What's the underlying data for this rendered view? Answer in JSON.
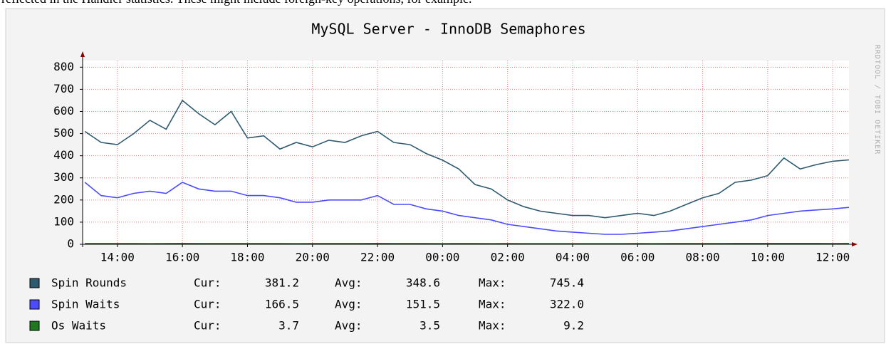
{
  "caption": "reflected in the Handler statistics. These might include foreign-key operations, for example.",
  "chart_data": {
    "type": "line",
    "title": "MySQL Server - InnoDB Semaphores",
    "watermark": "RRDTOOL / TOBI OETIKER",
    "x": [
      13,
      13.5,
      14,
      14.5,
      15,
      15.5,
      16,
      16.5,
      17,
      17.5,
      18,
      18.5,
      19,
      19.5,
      20,
      20.5,
      21,
      21.5,
      22,
      22.5,
      23,
      23.5,
      24,
      24.5,
      25,
      25.5,
      26,
      26.5,
      27,
      27.5,
      28,
      28.5,
      29,
      29.5,
      30,
      30.5,
      31,
      31.5,
      32,
      32.5,
      33,
      33.5,
      34,
      34.5,
      35,
      35.5,
      36,
      36.5
    ],
    "xlim": [
      12.93,
      36.5
    ],
    "xticks": [
      {
        "value": 14,
        "label": "14:00"
      },
      {
        "value": 16,
        "label": "16:00"
      },
      {
        "value": 18,
        "label": "18:00"
      },
      {
        "value": 20,
        "label": "20:00"
      },
      {
        "value": 22,
        "label": "22:00"
      },
      {
        "value": 24,
        "label": "00:00"
      },
      {
        "value": 26,
        "label": "02:00"
      },
      {
        "value": 28,
        "label": "04:00"
      },
      {
        "value": 30,
        "label": "06:00"
      },
      {
        "value": 32,
        "label": "08:00"
      },
      {
        "value": 34,
        "label": "10:00"
      },
      {
        "value": 36,
        "label": "12:00"
      }
    ],
    "ylim": [
      0,
      830
    ],
    "yticks": [
      0,
      100,
      200,
      300,
      400,
      500,
      600,
      700,
      800
    ],
    "grid": true,
    "stat_names": [
      "Cur:",
      "Avg:",
      "Max:"
    ],
    "series": [
      {
        "name": "Spin Rounds",
        "color": "#2e5a70",
        "values": [
          510,
          460,
          450,
          500,
          560,
          520,
          650,
          590,
          540,
          600,
          480,
          490,
          430,
          460,
          440,
          470,
          460,
          490,
          510,
          460,
          450,
          410,
          380,
          340,
          270,
          250,
          200,
          170,
          150,
          140,
          130,
          130,
          120,
          130,
          140,
          130,
          150,
          180,
          210,
          230,
          280,
          290,
          310,
          390,
          340,
          360,
          375,
          381.2
        ],
        "stats": [
          381.2,
          348.6,
          745.4
        ],
        "stat_labels": [
          "381.2",
          "348.6",
          "745.4"
        ]
      },
      {
        "name": "Spin Waits",
        "color": "#4b4bff",
        "values": [
          280,
          220,
          210,
          230,
          240,
          230,
          280,
          250,
          240,
          240,
          220,
          220,
          210,
          190,
          190,
          200,
          200,
          200,
          220,
          180,
          180,
          160,
          150,
          130,
          120,
          110,
          90,
          80,
          70,
          60,
          55,
          50,
          45,
          45,
          50,
          55,
          60,
          70,
          80,
          90,
          100,
          110,
          130,
          140,
          150,
          155,
          160,
          166.5
        ],
        "stats": [
          166.5,
          151.5,
          322
        ],
        "stat_labels": [
          "166.5",
          "151.5",
          "322.0"
        ]
      },
      {
        "name": "Os Waits",
        "color": "#1f7a1f",
        "values": [
          3.5,
          3.4,
          3.6,
          3.5,
          3.3,
          3.6,
          3.8,
          3.5,
          3.4,
          3.5,
          3.6,
          3.4,
          3.5,
          3.3,
          3.5,
          3.6,
          3.4,
          3.5,
          3.7,
          3.5,
          3.4,
          3.5,
          3.3,
          3.4,
          3.5,
          3.3,
          3.4,
          3.2,
          3.3,
          3.2,
          3.1,
          3.2,
          3.3,
          3.2,
          3.4,
          3.3,
          3.5,
          3.4,
          3.6,
          3.5,
          3.7,
          3.8,
          3.9,
          4.0,
          3.7,
          3.8,
          3.6,
          3.7
        ],
        "stats": [
          3.7,
          3.5,
          9.2
        ],
        "stat_labels": [
          "3.7",
          "3.5",
          "9.2"
        ]
      }
    ]
  }
}
